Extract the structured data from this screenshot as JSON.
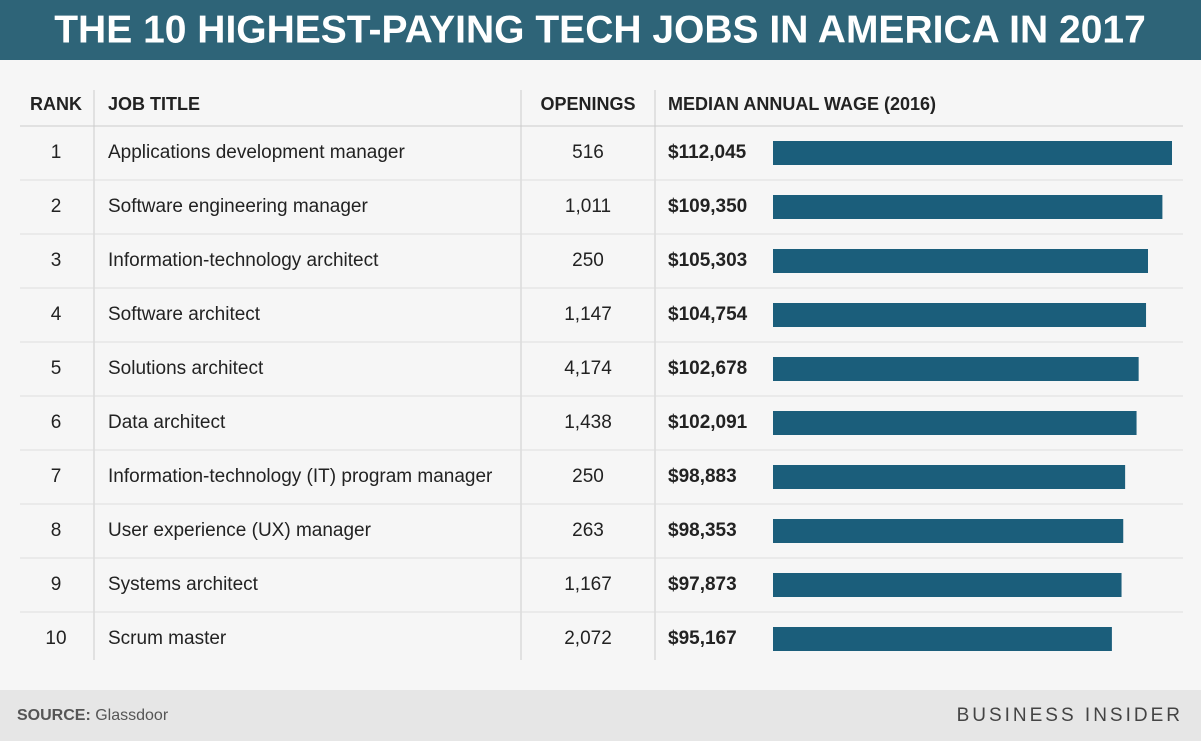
{
  "chart_data": {
    "type": "table-bar",
    "title": "THE 10 HIGHEST-PAYING TECH JOBS IN AMERICA IN 2017",
    "columns": [
      "RANK",
      "JOB TITLE",
      "OPENINGS",
      "MEDIAN ANNUAL WAGE (2016)"
    ],
    "rank": [
      1,
      2,
      3,
      4,
      5,
      6,
      7,
      8,
      9,
      10
    ],
    "categories": [
      "Applications development manager",
      "Software engineering manager",
      "Information-technology architect",
      "Software architect",
      "Solutions architect",
      "Data architect",
      "Information-technology (IT) program manager",
      "User experience (UX) manager",
      "Systems architect",
      "Scrum master"
    ],
    "openings": [
      516,
      1011,
      250,
      1147,
      4174,
      1438,
      250,
      263,
      1167,
      2072
    ],
    "openings_labels": [
      "516",
      "1,011",
      "250",
      "1,147",
      "4,174",
      "1,438",
      "250",
      "263",
      "1,167",
      "2,072"
    ],
    "values": [
      112045,
      109350,
      105303,
      104754,
      102678,
      102091,
      98883,
      98353,
      97873,
      95167
    ],
    "value_labels": [
      "$112,045",
      "$109,350",
      "$105,303",
      "$104,754",
      "$102,678",
      "$102,091",
      "$98,883",
      "$98,353",
      "$97,873",
      "$95,167"
    ],
    "color": "#1b5e7b",
    "header_color": "#2e6478",
    "source_label": "SOURCE:",
    "source": "Glassdoor",
    "brand": "BUSINESS INSIDER"
  }
}
